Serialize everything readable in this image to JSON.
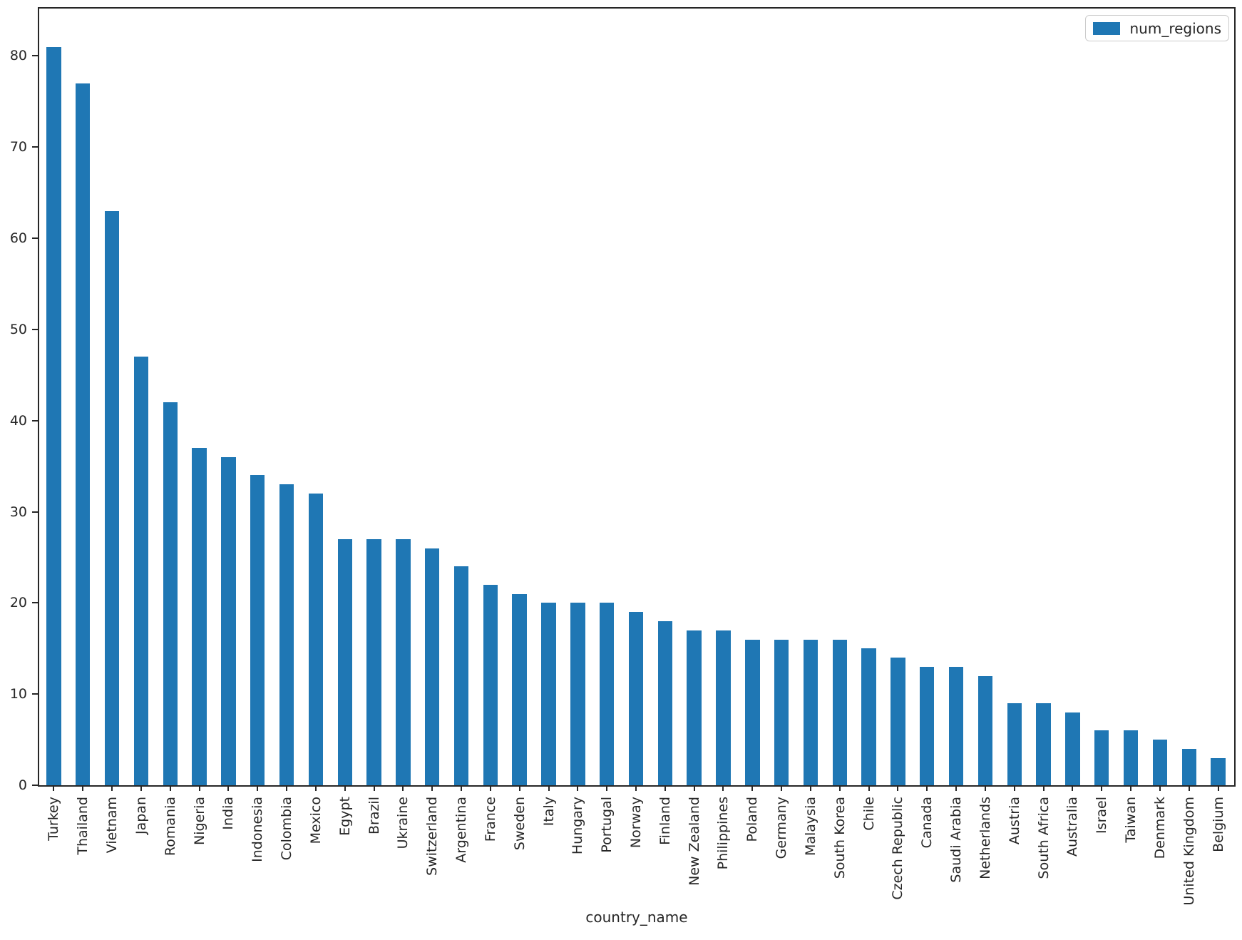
{
  "figure": {
    "background_color": "#ffffff",
    "spine_color": "#262626",
    "text_color": "#262626"
  },
  "chart_data": {
    "type": "bar",
    "title": "",
    "xlabel": "country_name",
    "ylabel": "",
    "series_name": "num_regions",
    "bar_color": "#1f77b4",
    "legend_position": "upper right",
    "grid": false,
    "x_tick_rotation": 90,
    "ylim": [
      0,
      85.2
    ],
    "yticks": [
      0,
      10,
      20,
      30,
      40,
      50,
      60,
      70,
      80
    ],
    "categories": [
      "Turkey",
      "Thailand",
      "Vietnam",
      "Japan",
      "Romania",
      "Nigeria",
      "India",
      "Indonesia",
      "Colombia",
      "Mexico",
      "Egypt",
      "Brazil",
      "Ukraine",
      "Switzerland",
      "Argentina",
      "France",
      "Sweden",
      "Italy",
      "Hungary",
      "Portugal",
      "Norway",
      "Finland",
      "New Zealand",
      "Philippines",
      "Poland",
      "Germany",
      "Malaysia",
      "South Korea",
      "Chile",
      "Czech Republic",
      "Canada",
      "Saudi Arabia",
      "Netherlands",
      "Austria",
      "South Africa",
      "Australia",
      "Israel",
      "Taiwan",
      "Denmark",
      "United Kingdom",
      "Belgium"
    ],
    "values": [
      81,
      77,
      63,
      47,
      42,
      37,
      36,
      34,
      33,
      32,
      27,
      27,
      27,
      26,
      24,
      22,
      21,
      20,
      20,
      20,
      19,
      18,
      17,
      17,
      16,
      16,
      16,
      16,
      15,
      14,
      13,
      13,
      12,
      9,
      9,
      8,
      6,
      6,
      5,
      4,
      3
    ]
  }
}
